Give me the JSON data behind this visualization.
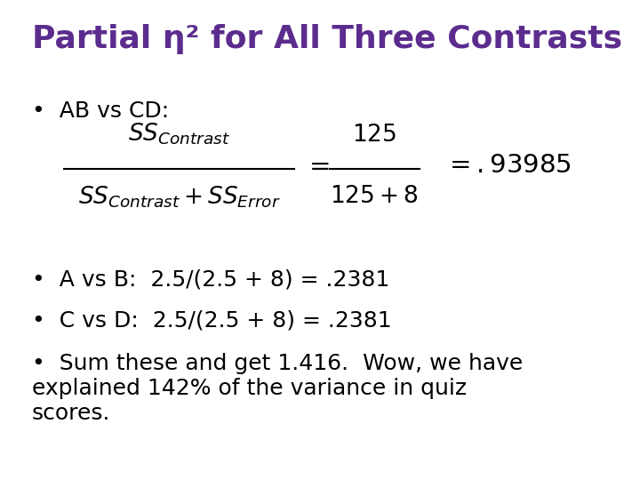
{
  "title": "Partial η² for All Three Contrasts",
  "title_color": "#5B2C8D",
  "title_fontsize": 26,
  "bg_color": "#FFFFFF",
  "bullet_color": "#000000",
  "bullet_fontsize": 18,
  "formula_fontsize": 19,
  "bullet1": "AB vs CD:",
  "bullet2": "A vs B:  2.5/(2.5 + 8) = .2381",
  "bullet3": "C vs D:  2.5/(2.5 + 8) = .2381",
  "bullet4": "Sum these and get 1.416.  Wow, we have\nexplained 142% of the variance in quiz\nscores."
}
